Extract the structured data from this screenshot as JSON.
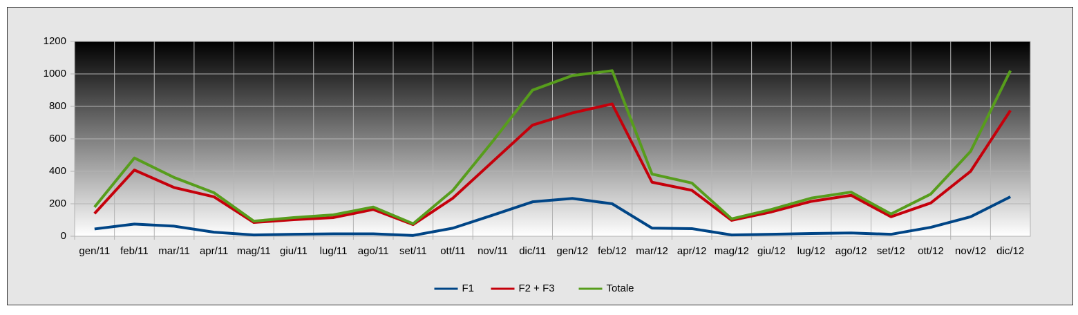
{
  "chart_data": {
    "type": "line",
    "categories": [
      "gen/11",
      "feb/11",
      "mar/11",
      "apr/11",
      "mag/11",
      "giu/11",
      "lug/11",
      "ago/11",
      "set/11",
      "ott/11",
      "nov/11",
      "dic/11",
      "gen/12",
      "feb/12",
      "mar/12",
      "apr/12",
      "mag/12",
      "giu/12",
      "lug/12",
      "ago/12",
      "set/12",
      "ott/12",
      "nov/12",
      "dic/12"
    ],
    "series": [
      {
        "name": "F1",
        "color": "#004586",
        "values": [
          45,
          75,
          62,
          25,
          8,
          12,
          15,
          15,
          5,
          50,
          130,
          212,
          233,
          200,
          50,
          47,
          8,
          12,
          17,
          20,
          12,
          55,
          120,
          243
        ]
      },
      {
        "name": "F2 + F3",
        "color": "#c5000b",
        "values": [
          140,
          408,
          300,
          243,
          85,
          102,
          115,
          165,
          72,
          235,
          460,
          685,
          760,
          815,
          333,
          283,
          98,
          150,
          215,
          252,
          120,
          205,
          400,
          775
        ]
      },
      {
        "name": "Totale",
        "color": "#579d1c",
        "values": [
          180,
          482,
          362,
          268,
          93,
          115,
          132,
          180,
          77,
          283,
          585,
          900,
          990,
          1020,
          383,
          328,
          107,
          165,
          235,
          272,
          137,
          260,
          523,
          1020
        ]
      }
    ],
    "ylim": [
      0,
      1200
    ],
    "yticks": [
      0,
      200,
      400,
      600,
      800,
      1000,
      1200
    ],
    "grid": true,
    "legend": "bottom"
  }
}
